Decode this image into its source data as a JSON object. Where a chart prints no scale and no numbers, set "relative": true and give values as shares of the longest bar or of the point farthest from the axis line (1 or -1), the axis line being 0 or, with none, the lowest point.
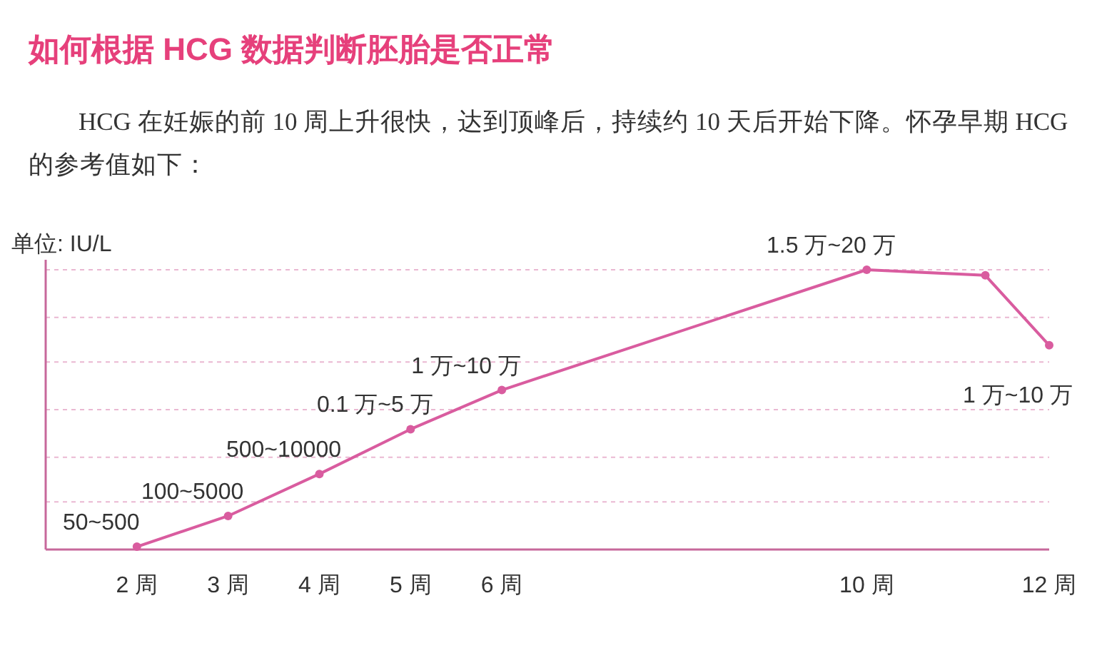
{
  "chart_data": {
    "type": "line",
    "title": "如何根据 HCG 数据判断胚胎是否正常",
    "subtitle": "HCG 在妊娠的前 10 周上升很快，达到顶峰后，持续约 10 天后开始下降。怀孕早期 HCG 的参考值如下：",
    "ylabel": "单位: IU/L",
    "x": [
      2,
      3,
      4,
      5,
      6,
      10,
      11.3,
      12
    ],
    "series": [
      {
        "color": "#d95c9f",
        "values": [
          0.01,
          0.12,
          0.27,
          0.43,
          0.57,
          1.0,
          0.98,
          0.73
        ]
      }
    ],
    "annotations": [
      {
        "text": "50~500",
        "x": 2,
        "y": 0.01
      },
      {
        "text": "100~5000",
        "x": 3,
        "y": 0.12
      },
      {
        "text": "500~10000",
        "x": 4,
        "y": 0.27
      },
      {
        "text": "0.1 万~5 万",
        "x": 5,
        "y": 0.43
      },
      {
        "text": "1 万~10 万",
        "x": 6,
        "y": 0.57
      },
      {
        "text": "1.5 万~20 万",
        "x": 10,
        "y": 1.0
      },
      {
        "text": "1 万~10 万",
        "x": 12,
        "y": 0.73
      }
    ],
    "relative": true,
    "xlim": [
      1,
      12
    ],
    "xticks": [
      {
        "value": 2,
        "label": "2 周"
      },
      {
        "value": 3,
        "label": "3 周"
      },
      {
        "value": 4,
        "label": "4 周"
      },
      {
        "value": 5,
        "label": "5 周"
      },
      {
        "value": 6,
        "label": "6 周"
      },
      {
        "value": 10,
        "label": "10 周"
      },
      {
        "value": 12,
        "label": "12 周"
      }
    ],
    "ref_lines": [
      {
        "axis": "y",
        "value": 0.17,
        "color": "#eab8d2",
        "line_style": "dotted"
      },
      {
        "axis": "y",
        "value": 0.33,
        "color": "#eab8d2",
        "line_style": "dotted"
      },
      {
        "axis": "y",
        "value": 0.5,
        "color": "#eab8d2",
        "line_style": "dotted"
      },
      {
        "axis": "y",
        "value": 0.67,
        "color": "#eab8d2",
        "line_style": "dotted"
      },
      {
        "axis": "y",
        "value": 0.83,
        "color": "#eab8d2",
        "line_style": "dotted"
      },
      {
        "axis": "y",
        "value": 1.0,
        "color": "#eab8d2",
        "line_style": "dotted"
      }
    ],
    "marker": "circle",
    "line_style": "solid"
  }
}
